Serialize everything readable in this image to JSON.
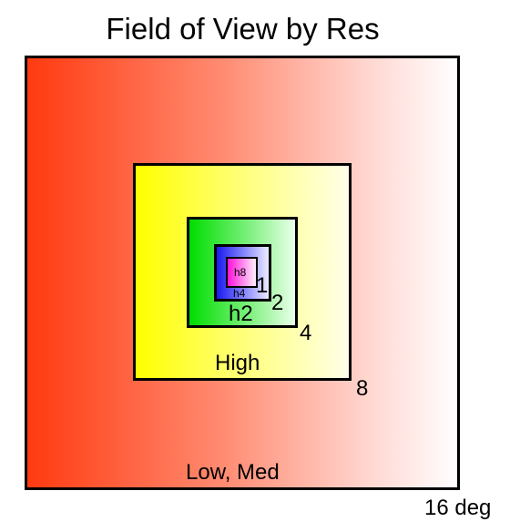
{
  "title": "Field of View by Res",
  "boxes": [
    {
      "size_label": "16 deg",
      "inner_label": "Low, Med",
      "color_start": "#ff3a10",
      "color_end": "#ffffff"
    },
    {
      "size_label": "8",
      "inner_label": "High",
      "color_start": "#ffff00",
      "color_end": "#ffffe8"
    },
    {
      "size_label": "4",
      "inner_label": "h2",
      "color_start": "#00dd00",
      "color_end": "#eaffea"
    },
    {
      "size_label": "2",
      "inner_label": "h4",
      "color_start": "#1a1aee",
      "color_end": "#ececff"
    },
    {
      "size_label": "1",
      "inner_label": "h8",
      "color_start": "#ff10d8",
      "color_end": "#fff0fc"
    }
  ]
}
